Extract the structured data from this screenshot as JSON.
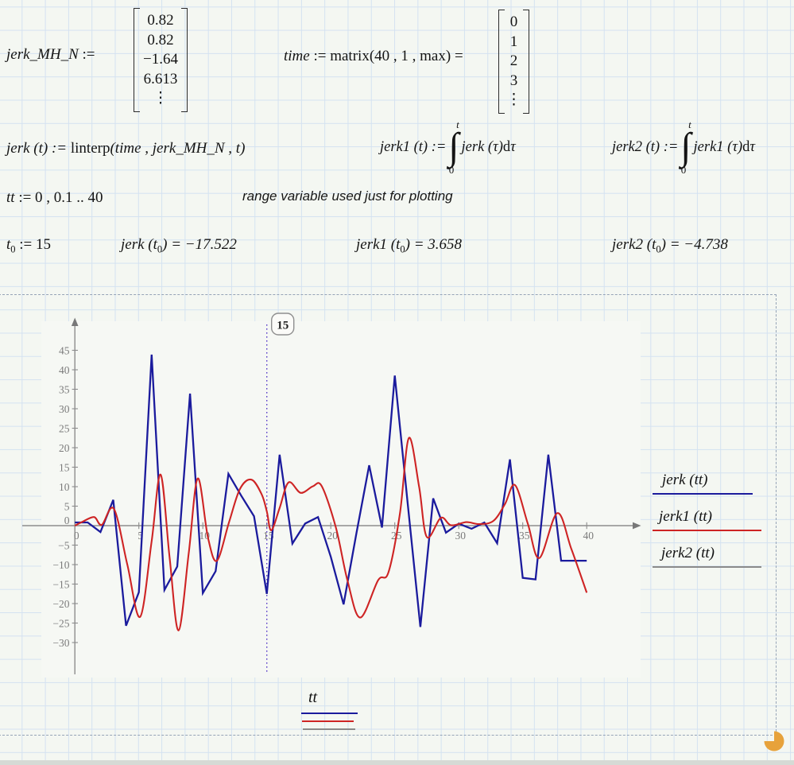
{
  "expressions": {
    "vec_def": {
      "name": "jerk_MH_N",
      "assign": " := ",
      "values": [
        "0.82",
        "0.82",
        "−1.64",
        "6.613",
        "⋮"
      ]
    },
    "time_def": {
      "name": "time",
      "assign": " := ",
      "fn": "matrix",
      "args_open": "(40 , 1 , ",
      "arg_max": "max",
      "args_close": ")",
      "equals": " = ",
      "values": [
        "0",
        "1",
        "2",
        "3",
        "⋮"
      ]
    },
    "jerk_def": {
      "lhs": "jerk (t) := ",
      "fn": "linterp",
      "args": "(time , jerk_MH_N , t)"
    },
    "jerk1_def": {
      "lhs": "jerk1 (t) := ",
      "upper": "t",
      "lower": "0",
      "integrand": "jerk (τ) ",
      "d": "d",
      "dvar": "τ"
    },
    "jerk2_def": {
      "lhs": "jerk2 (t) := ",
      "upper": "t",
      "lower": "0",
      "integrand": "jerk1 (τ) ",
      "d": "d",
      "dvar": "τ"
    },
    "range_def": {
      "var": "tt",
      "rest": " := 0 , 0.1 .. 40"
    },
    "comment": "range variable used just for plotting",
    "t0_def": {
      "var": "t",
      "sub": "0",
      "rest": " := 15"
    },
    "eval_jerk": {
      "pre": "jerk (",
      "var": "t",
      "sub": "0",
      "post": ") = −17.522"
    },
    "eval_jerk1": {
      "pre": "jerk1 (",
      "var": "t",
      "sub": "0",
      "post": ") = 3.658"
    },
    "eval_jerk2": {
      "pre": "jerk2 (",
      "var": "t",
      "sub": "0",
      "post": ") = −4.738"
    }
  },
  "chart_data": {
    "type": "line",
    "title": "",
    "xlabel": "tt",
    "ylabel": "",
    "xlim": [
      0,
      43
    ],
    "ylim": [
      -32,
      47
    ],
    "x_ticks": [
      0,
      5,
      10,
      15,
      20,
      25,
      30,
      35,
      40
    ],
    "y_ticks": [
      -30,
      -25,
      -20,
      -15,
      -10,
      -5,
      0,
      5,
      10,
      15,
      20,
      25,
      30,
      35,
      40,
      45
    ],
    "grid": false,
    "legend_position": "right",
    "marker": {
      "x": 15,
      "label": "15"
    },
    "series": [
      {
        "name": "jerk (tt)",
        "color": "#1b1b9d",
        "interpolation": "linear",
        "x_start": 0,
        "x_step": 1,
        "values": [
          0.82,
          0.82,
          -1.64,
          6.61,
          -25.7,
          -17.1,
          43.9,
          -16.5,
          -10.5,
          33.9,
          -17.3,
          -11.7,
          13.3,
          7.7,
          2.4,
          -17.52,
          18.2,
          -4.6,
          0.55,
          2.2,
          -8,
          -20.2,
          -2,
          15.5,
          -0.5,
          38.5,
          6,
          -26,
          7,
          -1.8,
          0.5,
          -0.8,
          0.8,
          -4.5,
          17,
          -13.4,
          -13.8,
          18.2,
          -9,
          -9,
          -9
        ]
      },
      {
        "name": "jerk1 (tt)",
        "color": "#ce2424",
        "interpolation": "smooth",
        "points": [
          [
            0,
            0
          ],
          [
            0.6,
            1.0
          ],
          [
            1.5,
            2.2
          ],
          [
            2.1,
            0.2
          ],
          [
            3.05,
            4.3
          ],
          [
            4.1,
            -10
          ],
          [
            5.1,
            -23.4
          ],
          [
            6.0,
            -4
          ],
          [
            6.7,
            13.1
          ],
          [
            7.4,
            -8
          ],
          [
            8.1,
            -26.9
          ],
          [
            8.9,
            -7
          ],
          [
            9.6,
            12.1
          ],
          [
            10.4,
            -3
          ],
          [
            11.1,
            -9.0
          ],
          [
            12.05,
            0.9
          ],
          [
            12.9,
            9.4
          ],
          [
            13.8,
            11.8
          ],
          [
            14.6,
            8.0
          ],
          [
            15.0,
            3.66
          ],
          [
            15.35,
            -1.2
          ],
          [
            16.0,
            4.5
          ],
          [
            16.7,
            11.1
          ],
          [
            17.65,
            8.4
          ],
          [
            18.6,
            10.1
          ],
          [
            19.3,
            10.1
          ],
          [
            20.4,
            -0.5
          ],
          [
            21.3,
            -14
          ],
          [
            22.3,
            -23.6
          ],
          [
            23.7,
            -14.0
          ],
          [
            24.5,
            -12.0
          ],
          [
            25.4,
            3
          ],
          [
            26.1,
            22.5
          ],
          [
            26.9,
            10
          ],
          [
            27.5,
            -2.9
          ],
          [
            28.6,
            2.0
          ],
          [
            29.4,
            0.1
          ],
          [
            30.6,
            0.9
          ],
          [
            31.6,
            0.4
          ],
          [
            32.7,
            1.2
          ],
          [
            33.6,
            5.5
          ],
          [
            34.4,
            10.4
          ],
          [
            35.4,
            0.5
          ],
          [
            36.3,
            -8.3
          ],
          [
            37.7,
            3.2
          ],
          [
            38.8,
            -6
          ],
          [
            40,
            -17.2
          ]
        ]
      },
      {
        "name": "jerk2 (tt)",
        "color": "#8a8a8a",
        "interpolation": "smooth",
        "visible": false,
        "points": []
      }
    ]
  },
  "legend": {
    "entries": [
      {
        "label": "jerk (tt)",
        "color": "#1b1b9d"
      },
      {
        "label": "jerk1 (tt)",
        "color": "#ce2424"
      },
      {
        "label": "jerk2 (tt)",
        "color": "#8a8a8a"
      }
    ]
  },
  "axis_label_block": {
    "label": "tt"
  },
  "decorations": {
    "corner_icon": "pac-man-resize-corner",
    "corner_icon_color": "#e7a23b",
    "selection_border_color": "#95a3b6"
  }
}
